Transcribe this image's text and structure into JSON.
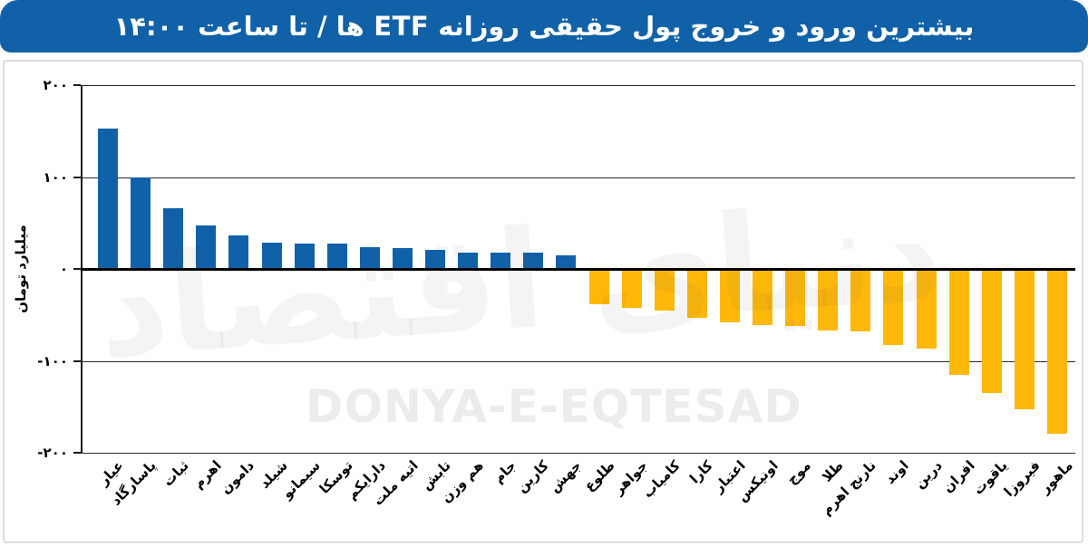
{
  "header": {
    "title": "بیشترین ورود و خروج پول حقیقی روزانه ETF ها / تا ساعت ۱۴:۰۰"
  },
  "watermark": {
    "calligraphy": "دنیای اقتصاد",
    "latin": "DONYA-E-EQTESAD"
  },
  "colors": {
    "header_bg": "#1061a8",
    "bar_positive": "#1061a8",
    "bar_negative": "#fdb80a",
    "gridline": "#2a2a2a",
    "watermark_text": "#ececec",
    "panel_border": "#dcdcdc"
  },
  "chart_data": {
    "type": "bar",
    "title": "بیشترین ورود و خروج پول حقیقی روزانه ETF ها / تا ساعت ۱۴:۰۰",
    "xlabel": "",
    "ylabel": "میلیارد تومان",
    "ylim": [
      -200,
      200
    ],
    "grid": true,
    "legend": "none",
    "unit": "میلیارد تومان",
    "ytick_values": [
      200,
      100,
      0,
      -100,
      -200
    ],
    "ytick_labels": [
      "۲۰۰",
      "۱۰۰",
      "۰",
      "-۱۰۰",
      "-۲۰۰"
    ],
    "categories": [
      "عیار",
      "پاسارگاد",
      "ثبات",
      "اهرم",
      "دامون",
      "شیلد",
      "سیمانو",
      "توسکا",
      "دارایکم",
      "اتیه ملت",
      "تابش",
      "هم وزن",
      "جام",
      "کارین",
      "جهش",
      "طلوع",
      "جواهر",
      "کامیاب",
      "کارا",
      "اعتبار",
      "اونیکس",
      "موج",
      "طلا",
      "نارنج اهرم",
      "اوند",
      "درین",
      "افران",
      "یاقوت",
      "فیروزا",
      "ماهور"
    ],
    "values": [
      153,
      100,
      66,
      47,
      36,
      29,
      28,
      28,
      24,
      23,
      21,
      18,
      18,
      18,
      15,
      -38,
      -42,
      -45,
      -53,
      -58,
      -61,
      -62,
      -67,
      -68,
      -83,
      -87,
      -115,
      -135,
      -153,
      -179
    ]
  }
}
